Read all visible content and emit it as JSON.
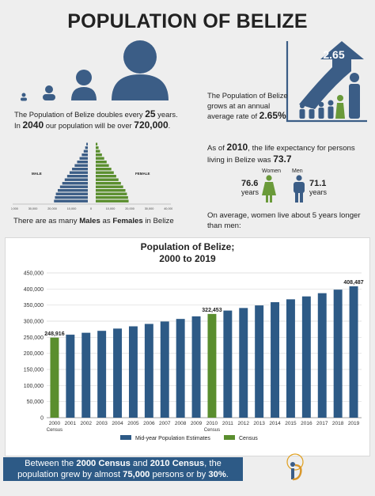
{
  "title": "POPULATION OF BELIZE",
  "doubling": {
    "line1_pre": "The Population of Belize doubles every ",
    "years": "25",
    "line1_post": " years.",
    "line2_pre": "In ",
    "year": "2040",
    "line2_mid": " our population will be over ",
    "population": "720,000",
    "line2_post": "."
  },
  "growth": {
    "text_pre": "The Population of Belize grows at an annual average rate of ",
    "rate": "2.65%",
    "arrow_label": "2.65"
  },
  "life": {
    "pre": "As of ",
    "year": "2010",
    "mid": ", the life expectancy for persons living in Belize was ",
    "value": "73.7",
    "women_label": "Women",
    "men_label": "Men",
    "women_value": "76.6",
    "men_value": "71.1",
    "years_word": "years",
    "footnote": "On average, women live about 5 years longer than men:"
  },
  "pyramid": {
    "male_label": "MALE",
    "female_label": "FEMALE",
    "caption_pre": "There are as many ",
    "males": "Males",
    "caption_mid": " as ",
    "females": "Females",
    "caption_post": " in Belize",
    "male_values": [
      18000,
      17500,
      17000,
      16000,
      14800,
      13600,
      12300,
      11000,
      9700,
      8400,
      7000,
      5700,
      4400,
      3200,
      2200,
      1400,
      800
    ],
    "female_values": [
      17500,
      17200,
      16600,
      15800,
      14600,
      13400,
      12100,
      10900,
      9600,
      8300,
      7000,
      5800,
      4500,
      3300,
      2300,
      1500,
      900
    ],
    "x_ticks": [
      "40,000",
      "30,000",
      "20,000",
      "10,000",
      "0",
      "10,000",
      "20,000",
      "30,000",
      "40,000"
    ]
  },
  "chart_data": {
    "type": "bar",
    "title_line1": "Population of Belize;",
    "title_line2": "2000 to 2019",
    "categories": [
      "2000",
      "2001",
      "2002",
      "2003",
      "2004",
      "2005",
      "2006",
      "2007",
      "2008",
      "2009",
      "2010",
      "2011",
      "2012",
      "2013",
      "2014",
      "2015",
      "2016",
      "2017",
      "2018",
      "2019"
    ],
    "sub_labels": {
      "2000": "Census",
      "2010": "Census"
    },
    "values": [
      248916,
      258000,
      264000,
      270000,
      277000,
      284000,
      291500,
      299000,
      307000,
      315000,
      322453,
      333000,
      341000,
      349000,
      359000,
      368000,
      377000,
      387000,
      398000,
      408487
    ],
    "is_census": [
      true,
      false,
      false,
      false,
      false,
      false,
      false,
      false,
      false,
      false,
      true,
      false,
      false,
      false,
      false,
      false,
      false,
      false,
      false,
      false
    ],
    "data_labels": {
      "0": "248,916",
      "10": "322,453",
      "19": "408,487"
    },
    "ylim": [
      0,
      450000
    ],
    "yticks": [
      "0",
      "50,000",
      "100,000",
      "150,000",
      "200,000",
      "250,000",
      "300,000",
      "350,000",
      "400,000",
      "450,000"
    ],
    "grid": true,
    "legend_position": "bottom",
    "legend": [
      "Mid-year Population Estimates",
      "Census"
    ],
    "colors": {
      "estimate": "#2d5a86",
      "census": "#5a8e2e"
    }
  },
  "banner": {
    "pre": "Between the ",
    "c2000": "2000 Census",
    "mid1": " and ",
    "c2010": "2010 Census",
    "mid2": ", the population grew by almost ",
    "growth": "75,000",
    "mid3": " persons or by ",
    "pct": "30%",
    "post": "."
  },
  "colors": {
    "navy": "#3b5d86",
    "green": "#6a9a3a",
    "background": "#eeeeee"
  }
}
